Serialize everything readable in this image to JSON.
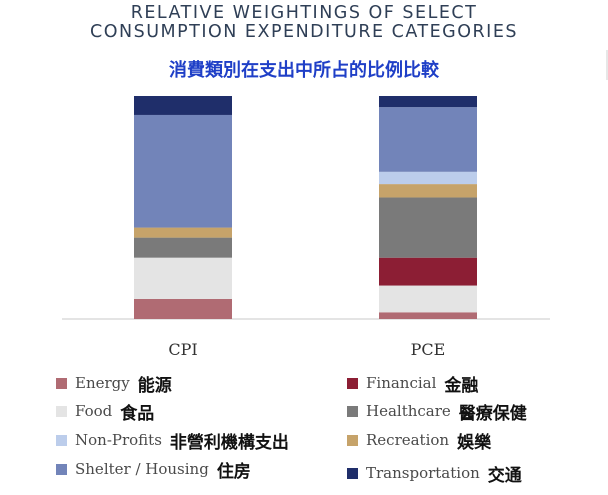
{
  "title_en_line1": "RELATIVE WEIGHTINGS OF SELECT",
  "title_en_line2": "CONSUMPTION EXPENDITURE CATEGORIES",
  "title_zh": "消費類別在支出中所占的比例比較",
  "colors": {
    "Energy": "#b06b73",
    "Food": "#e4e4e4",
    "Financial": "#8c1e34",
    "Healthcare": "#7a7a7a",
    "Recreation": "#c6a36a",
    "Non-Profits": "#bccdeb",
    "Shelter / Housing": "#7284b9",
    "Transportation": "#1f2e6a"
  },
  "chart_data": {
    "type": "bar",
    "stacked": true,
    "orientation": "vertical",
    "categories": [
      "CPI",
      "PCE"
    ],
    "ylim": [
      0,
      100
    ],
    "grid": false,
    "series": [
      {
        "name": "Energy",
        "values": [
          9,
          3
        ]
      },
      {
        "name": "Food",
        "values": [
          18.5,
          12
        ]
      },
      {
        "name": "Financial",
        "values": [
          0,
          12.5
        ]
      },
      {
        "name": "Healthcare",
        "values": [
          9,
          27
        ]
      },
      {
        "name": "Recreation",
        "values": [
          4.5,
          6
        ]
      },
      {
        "name": "Non-Profits",
        "values": [
          0,
          5.5
        ]
      },
      {
        "name": "Shelter / Housing",
        "values": [
          50.5,
          29
        ]
      },
      {
        "name": "Transportation",
        "values": [
          8.5,
          5
        ]
      }
    ]
  },
  "legend": {
    "placement": "bottom",
    "items": [
      {
        "key": "Energy",
        "en": "Energy",
        "zh": "能源"
      },
      {
        "key": "Financial",
        "en": "Financial",
        "zh": "金融"
      },
      {
        "key": "Food",
        "en": "Food",
        "zh": "食品"
      },
      {
        "key": "Healthcare",
        "en": "Healthcare",
        "zh": "醫療保健"
      },
      {
        "key": "Non-Profits",
        "en": "Non-Profits",
        "zh": "非營利機構支出"
      },
      {
        "key": "Recreation",
        "en": "Recreation",
        "zh": "娛樂"
      },
      {
        "key": "Shelter / Housing",
        "en": "Shelter / Housing",
        "zh": "住房"
      },
      {
        "key": "Transportation",
        "en": "Transportation",
        "zh": "交通"
      }
    ]
  }
}
